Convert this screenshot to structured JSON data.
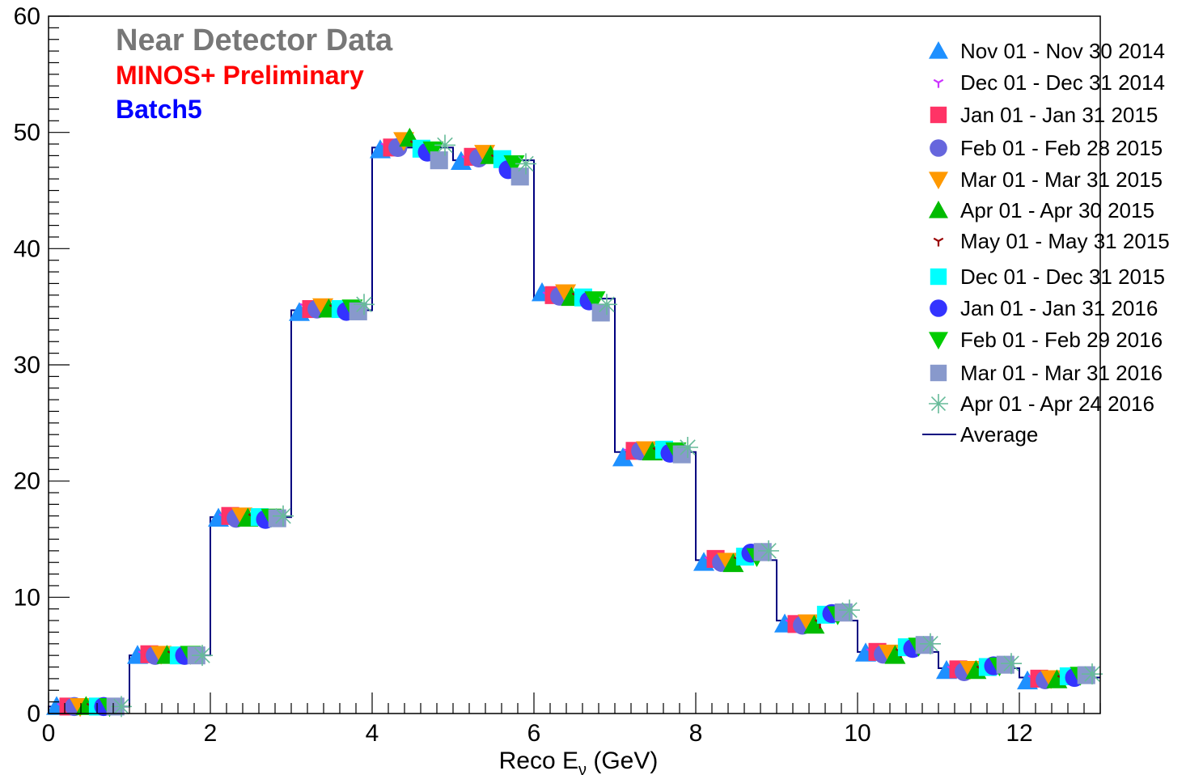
{
  "chart_data": {
    "type": "scatter",
    "annotations": {
      "line1": "Near Detector Data",
      "line2": "MINOS+ Preliminary",
      "line3": "Batch5",
      "color1": "#777777",
      "color2": "#ff0000",
      "color3": "#0000ff"
    },
    "xlabel": "Reco E",
    "xlabel_sub": "ν",
    "xlabel_unit": " (GeV)",
    "xlim": [
      0,
      13
    ],
    "ylim": [
      0,
      60
    ],
    "xticks": [
      "0",
      "2",
      "4",
      "6",
      "8",
      "10",
      "12"
    ],
    "yticks": [
      "0",
      "10",
      "20",
      "30",
      "40",
      "50",
      "60"
    ],
    "grid": false,
    "legend_position": "top-right",
    "bins": [
      0,
      1,
      2,
      3,
      4,
      5,
      6,
      7,
      8,
      9,
      10,
      11,
      12,
      13
    ],
    "average": {
      "name": "Average",
      "color": "#000080",
      "values": [
        0.6,
        5.0,
        16.9,
        34.7,
        48.7,
        47.6,
        35.7,
        22.5,
        13.2,
        8.0,
        5.3,
        3.9,
        3.1
      ]
    },
    "series": [
      {
        "name": "Nov 01 - Nov 30 2014",
        "color": "#1e90ff",
        "marker": "triangle-up",
        "values": [
          0.6,
          5.0,
          16.8,
          34.5,
          48.5,
          47.5,
          36.2,
          22.0,
          13.0,
          7.7,
          5.2,
          3.7,
          2.8
        ]
      },
      {
        "name": "Dec 01 - Dec 31 2014",
        "color": "#cc33ff",
        "marker": "tri-star",
        "values": [
          0.6,
          5.1,
          16.9,
          35.0,
          48.8,
          47.7,
          36.0,
          22.5,
          13.2,
          7.8,
          5.3,
          3.8,
          3.0
        ]
      },
      {
        "name": "Jan 01 - Jan 31 2015",
        "color": "#ff3366",
        "marker": "square",
        "values": [
          0.6,
          5.1,
          17.0,
          34.8,
          48.7,
          47.9,
          36.0,
          22.6,
          13.3,
          7.7,
          5.3,
          3.8,
          3.0
        ]
      },
      {
        "name": "Feb 01 - Feb 28 2015",
        "color": "#6666dd",
        "marker": "circle",
        "values": [
          0.6,
          5.0,
          16.8,
          34.8,
          48.7,
          47.8,
          35.9,
          22.6,
          13.0,
          7.6,
          5.1,
          3.6,
          2.9
        ]
      },
      {
        "name": "Mar 01 - Mar 31 2015",
        "color": "#ff9900",
        "marker": "triangle-down",
        "values": [
          0.6,
          5.1,
          17.0,
          35.0,
          49.3,
          48.2,
          36.2,
          22.7,
          13.1,
          7.8,
          5.2,
          3.8,
          3.0
        ]
      },
      {
        "name": "Apr 01 - Apr 30 2015",
        "color": "#00bb00",
        "marker": "triangle-up",
        "values": [
          0.6,
          5.0,
          16.8,
          34.8,
          49.5,
          48.0,
          35.8,
          22.5,
          12.9,
          7.6,
          5.0,
          3.7,
          2.9
        ]
      },
      {
        "name": "May 01 - May 31 2015",
        "color": "#990000",
        "marker": "tri-star",
        "values": [
          0.6,
          5.1,
          16.9,
          34.9,
          49.0,
          47.8,
          35.9,
          22.6,
          13.2,
          7.8,
          5.3,
          3.8,
          3.0
        ]
      },
      {
        "name": "Dec 01 - Dec 31 2015",
        "color": "#00ffff",
        "marker": "square",
        "values": [
          0.6,
          5.0,
          16.9,
          34.8,
          48.6,
          47.7,
          35.8,
          22.7,
          13.5,
          8.5,
          5.7,
          4.0,
          3.2
        ]
      },
      {
        "name": "Jan 01 - Jan 31 2016",
        "color": "#3333ff",
        "marker": "circle",
        "values": [
          0.6,
          5.0,
          16.7,
          34.6,
          48.3,
          46.8,
          35.5,
          22.4,
          13.8,
          8.6,
          5.6,
          4.1,
          3.1
        ]
      },
      {
        "name": "Feb 01 - Feb 29 2016",
        "color": "#00cc00",
        "marker": "triangle-down",
        "values": [
          0.6,
          5.1,
          16.9,
          34.9,
          48.5,
          47.3,
          35.6,
          22.6,
          13.5,
          8.5,
          5.8,
          4.1,
          3.3
        ]
      },
      {
        "name": "Mar 01 - Mar 31 2016",
        "color": "#8899cc",
        "marker": "square",
        "values": [
          0.6,
          5.0,
          16.8,
          34.6,
          47.6,
          46.2,
          34.5,
          22.3,
          13.9,
          8.7,
          5.9,
          4.2,
          3.3
        ]
      },
      {
        "name": "Apr 01 - Apr 24 2016",
        "color": "#66bb99",
        "marker": "asterisk",
        "values": [
          0.6,
          5.0,
          17.0,
          35.2,
          48.9,
          47.3,
          35.2,
          22.9,
          14.0,
          8.9,
          6.0,
          4.3,
          3.4
        ]
      }
    ]
  }
}
